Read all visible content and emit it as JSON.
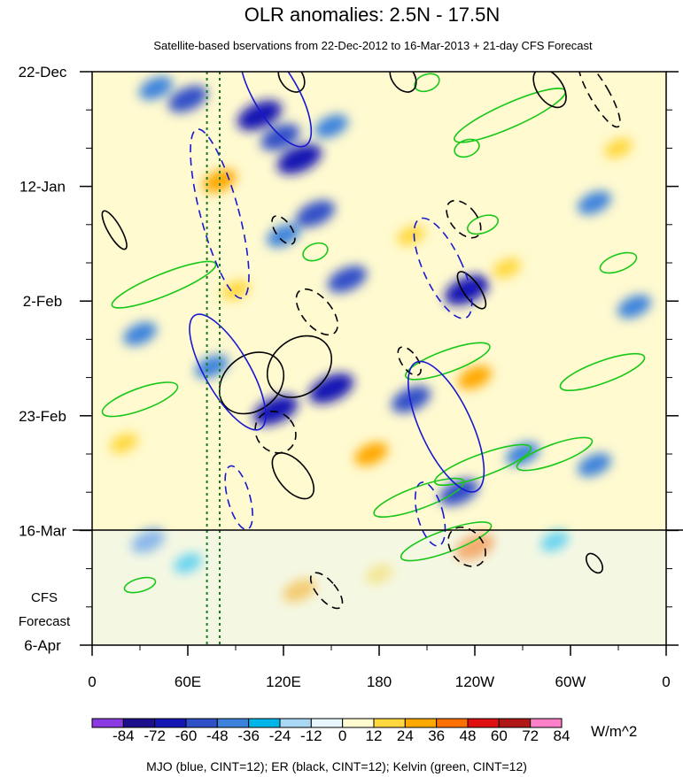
{
  "chart_data": {
    "type": "heatmap",
    "title": "OLR anomalies: 2.5N - 17.5N",
    "subtitle": "Satellite-based bservations from 22-Dec-2012 to 16-Mar-2013 + 21-day CFS Forecast",
    "x_ticks": [
      {
        "label": "0",
        "lon": 0
      },
      {
        "label": "60E",
        "lon": 60
      },
      {
        "label": "120E",
        "lon": 120
      },
      {
        "label": "180",
        "lon": 180
      },
      {
        "label": "120W",
        "lon": 240
      },
      {
        "label": "60W",
        "lon": 300
      },
      {
        "label": "0",
        "lon": 360
      }
    ],
    "y_ticks": [
      {
        "label": "22-Dec",
        "day": 0
      },
      {
        "label": "12-Jan",
        "day": 21
      },
      {
        "label": "2-Feb",
        "day": 42
      },
      {
        "label": "23-Feb",
        "day": 63
      },
      {
        "label": "16-Mar",
        "day": 84
      },
      {
        "label": "6-Apr",
        "day": 105
      }
    ],
    "xlim": [
      0,
      360
    ],
    "ylim_days": [
      0,
      105
    ],
    "observation_end_day": 84,
    "forecast_label_1": "CFS",
    "forecast_label_2": "Forecast",
    "reference_lines_lon": [
      72,
      80
    ],
    "colorbar": {
      "levels": [
        "-84",
        "-72",
        "-60",
        "-48",
        "-36",
        "-24",
        "-12",
        "0",
        "12",
        "24",
        "36",
        "48",
        "60",
        "72",
        "84"
      ],
      "colors": [
        "#8a3ae0",
        "#1d0f8c",
        "#1616b4",
        "#3050c8",
        "#3c82dc",
        "#00b6e8",
        "#a8d8f4",
        "#e6f6fa",
        "#fffad0",
        "#ffd840",
        "#ffa800",
        "#ff7000",
        "#e01010",
        "#b01818",
        "#ff80c8"
      ],
      "unit": "W/m^2"
    },
    "legend": "MJO (blue, CINT=12); ER (black, CINT=12); Kelvin (green, CINT=12)",
    "series_colors": {
      "MJO": "#1818d0",
      "ER": "#000000",
      "Kelvin": "#18c818"
    },
    "anomaly_features": [
      {
        "lon": 40,
        "day": 3,
        "value": -36
      },
      {
        "lon": 60,
        "day": 5,
        "value": -48
      },
      {
        "lon": 105,
        "day": 8,
        "value": -60
      },
      {
        "lon": 118,
        "day": 12,
        "value": -48
      },
      {
        "lon": 130,
        "day": 16,
        "value": -60
      },
      {
        "lon": 150,
        "day": 10,
        "value": -36
      },
      {
        "lon": 140,
        "day": 26,
        "value": -48
      },
      {
        "lon": 120,
        "day": 30,
        "value": -36
      },
      {
        "lon": 160,
        "day": 38,
        "value": -48
      },
      {
        "lon": 235,
        "day": 40,
        "value": -60
      },
      {
        "lon": 200,
        "day": 60,
        "value": -48
      },
      {
        "lon": 150,
        "day": 58,
        "value": -60
      },
      {
        "lon": 115,
        "day": 62,
        "value": -60
      },
      {
        "lon": 75,
        "day": 54,
        "value": -36
      },
      {
        "lon": 30,
        "day": 48,
        "value": -36
      },
      {
        "lon": 230,
        "day": 77,
        "value": -48
      },
      {
        "lon": 270,
        "day": 70,
        "value": -36
      },
      {
        "lon": 315,
        "day": 72,
        "value": -36
      },
      {
        "lon": 315,
        "day": 24,
        "value": -36
      },
      {
        "lon": 340,
        "day": 43,
        "value": -36
      },
      {
        "lon": 35,
        "day": 86,
        "value": -36
      },
      {
        "lon": 60,
        "day": 90,
        "value": -24
      },
      {
        "lon": 290,
        "day": 86,
        "value": -24
      },
      {
        "lon": 80,
        "day": 20,
        "value": 36
      },
      {
        "lon": 200,
        "day": 30,
        "value": 24
      },
      {
        "lon": 240,
        "day": 56,
        "value": 36
      },
      {
        "lon": 240,
        "day": 87,
        "value": 48
      },
      {
        "lon": 130,
        "day": 95,
        "value": 36
      },
      {
        "lon": 180,
        "day": 92,
        "value": 24
      },
      {
        "lon": 90,
        "day": 40,
        "value": 24
      },
      {
        "lon": 330,
        "day": 14,
        "value": 24
      },
      {
        "lon": 20,
        "day": 68,
        "value": 24
      },
      {
        "lon": 175,
        "day": 70,
        "value": 36
      },
      {
        "lon": 260,
        "day": 36,
        "value": 24
      }
    ],
    "mjo_contours": [
      {
        "lon": 115,
        "day": 4,
        "rlon": 14,
        "rday": 11,
        "angle": -30,
        "dash": false
      },
      {
        "lon": 80,
        "day": 26,
        "rlon": 12,
        "rday": 16,
        "angle": -15,
        "dash": true
      },
      {
        "lon": 85,
        "day": 55,
        "rlon": 14,
        "rday": 12,
        "angle": -30,
        "dash": false
      },
      {
        "lon": 222,
        "day": 65,
        "rlon": 16,
        "rday": 13,
        "angle": -25,
        "dash": false
      },
      {
        "lon": 220,
        "day": 36,
        "rlon": 12,
        "rday": 10,
        "angle": -25,
        "dash": true
      },
      {
        "lon": 92,
        "day": 78,
        "rlon": 7,
        "rday": 6,
        "angle": -15,
        "dash": true
      },
      {
        "lon": 212,
        "day": 81,
        "rlon": 8,
        "rday": 6,
        "angle": -15,
        "dash": true
      }
    ],
    "er_contours": [
      {
        "lon": 125,
        "day": 1,
        "rlon": 7,
        "rday": 3,
        "angle": -35,
        "dash": false
      },
      {
        "lon": 195,
        "day": 1,
        "rlon": 7,
        "rday": 3,
        "angle": -35,
        "dash": false
      },
      {
        "lon": 287,
        "day": 3,
        "rlon": 8,
        "rday": 4,
        "angle": -35,
        "dash": false
      },
      {
        "lon": 318,
        "day": 4,
        "rlon": 6,
        "rday": 7,
        "angle": -30,
        "dash": true
      },
      {
        "lon": 14,
        "day": 29,
        "rlon": 4,
        "rday": 4,
        "angle": -30,
        "dash": false
      },
      {
        "lon": 120,
        "day": 29,
        "rlon": 5,
        "rday": 3,
        "angle": -35,
        "dash": true
      },
      {
        "lon": 233,
        "day": 27,
        "rlon": 8,
        "rday": 4,
        "angle": -40,
        "dash": true
      },
      {
        "lon": 238,
        "day": 40,
        "rlon": 5,
        "rday": 4,
        "angle": -35,
        "dash": false
      },
      {
        "lon": 141,
        "day": 44,
        "rlon": 9,
        "rday": 5,
        "angle": -40,
        "dash": true
      },
      {
        "lon": 130,
        "day": 54,
        "rlon": 22,
        "rday": 5,
        "angle": -40,
        "dash": false
      },
      {
        "lon": 100,
        "day": 57,
        "rlon": 22,
        "rday": 5,
        "angle": -40,
        "dash": false
      },
      {
        "lon": 115,
        "day": 66,
        "rlon": 12,
        "rday": 4,
        "angle": -40,
        "dash": true
      },
      {
        "lon": 126,
        "day": 74,
        "rlon": 9,
        "rday": 5,
        "angle": -40,
        "dash": false
      },
      {
        "lon": 199,
        "day": 53,
        "rlon": 5,
        "rday": 3,
        "angle": -35,
        "dash": true
      },
      {
        "lon": 235,
        "day": 87,
        "rlon": 10,
        "rday": 4,
        "angle": -40,
        "dash": true
      },
      {
        "lon": 147,
        "day": 95,
        "rlon": 6,
        "rday": 4,
        "angle": -40,
        "dash": true
      },
      {
        "lon": 315,
        "day": 90,
        "rlon": 4,
        "rday": 2,
        "angle": -35,
        "dash": false
      }
    ],
    "kelvin_contours": [
      {
        "lon": 262,
        "day": 8,
        "rlon": 38,
        "rday": 2.2,
        "angle": -24
      },
      {
        "lon": 235,
        "day": 14,
        "rlon": 8,
        "rday": 1.5,
        "angle": -20
      },
      {
        "lon": 210,
        "day": 2,
        "rlon": 8,
        "rday": 1.5,
        "angle": -20
      },
      {
        "lon": 245,
        "day": 28,
        "rlon": 10,
        "rday": 1.5,
        "angle": -20
      },
      {
        "lon": 330,
        "day": 35,
        "rlon": 12,
        "rday": 1.5,
        "angle": -20
      },
      {
        "lon": 45,
        "day": 39,
        "rlon": 35,
        "rday": 2,
        "angle": -22
      },
      {
        "lon": 223,
        "day": 53,
        "rlon": 28,
        "rday": 2,
        "angle": -20
      },
      {
        "lon": 320,
        "day": 55,
        "rlon": 28,
        "rday": 2,
        "angle": -20
      },
      {
        "lon": 30,
        "day": 60,
        "rlon": 25,
        "rday": 2,
        "angle": -20
      },
      {
        "lon": 245,
        "day": 72,
        "rlon": 32,
        "rday": 2,
        "angle": -20
      },
      {
        "lon": 205,
        "day": 78,
        "rlon": 30,
        "rday": 2,
        "angle": -20
      },
      {
        "lon": 222,
        "day": 86,
        "rlon": 30,
        "rday": 2,
        "angle": -20
      },
      {
        "lon": 290,
        "day": 70,
        "rlon": 25,
        "rday": 1.8,
        "angle": -20
      },
      {
        "lon": 140,
        "day": 33,
        "rlon": 8,
        "rday": 1.5,
        "angle": -20
      },
      {
        "lon": 30,
        "day": 94,
        "rlon": 10,
        "rday": 1.2,
        "angle": -15
      }
    ]
  }
}
